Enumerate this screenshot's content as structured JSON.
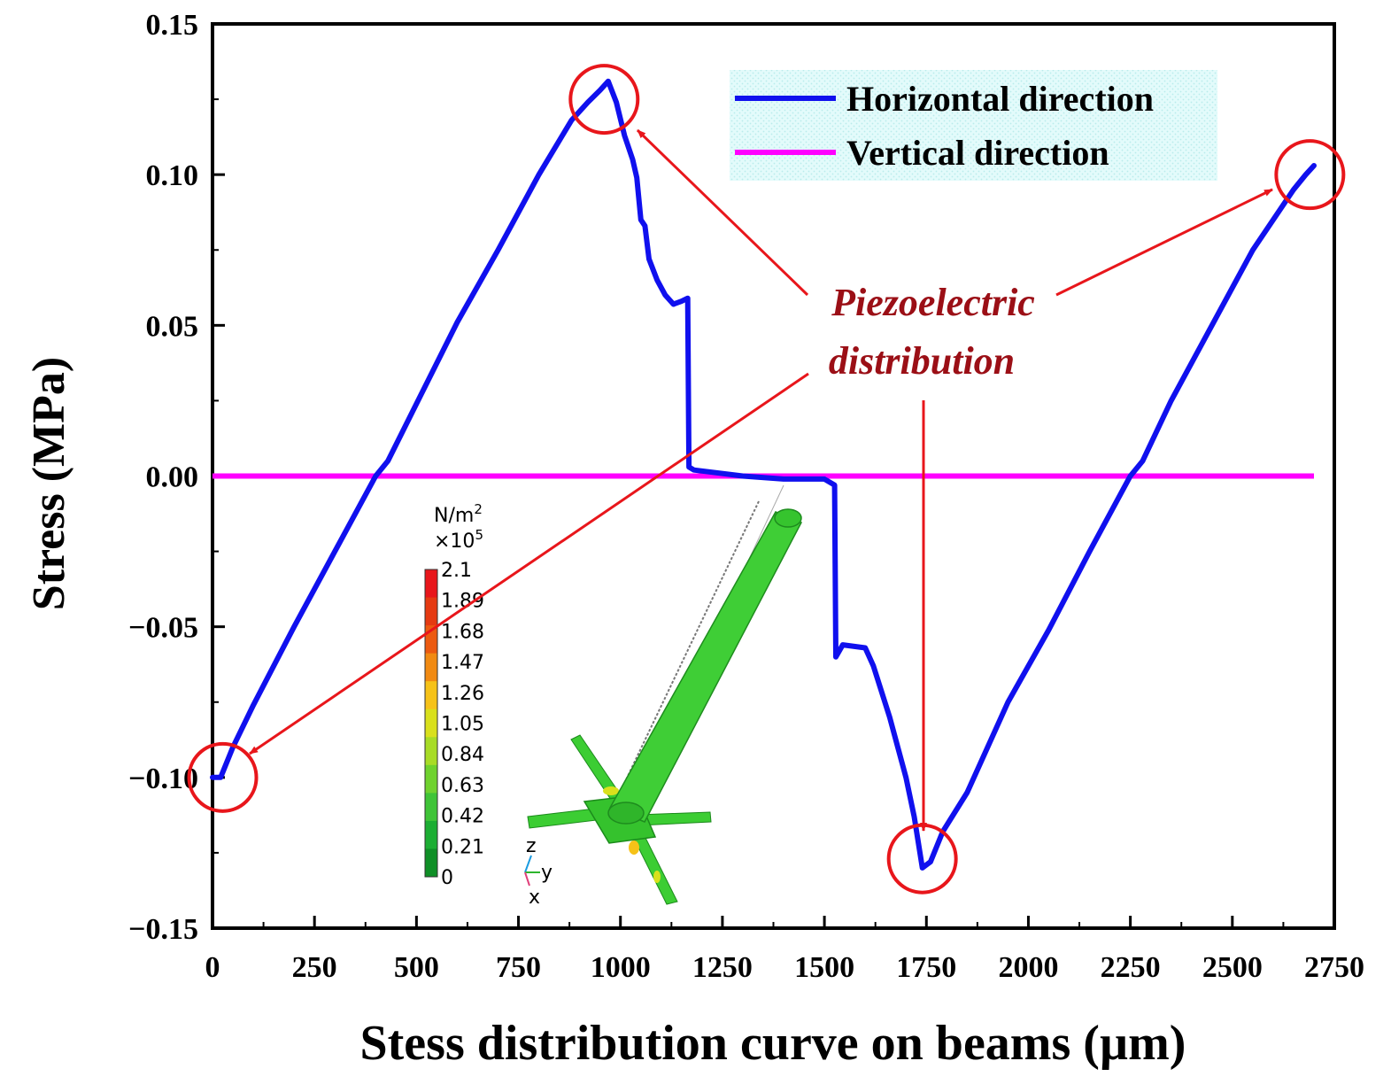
{
  "chart_data": {
    "type": "line",
    "title": "",
    "xlabel": "Stess distribution curve on beams (µm)",
    "ylabel": "Stress (MPa)",
    "xlim": [
      0,
      2750
    ],
    "ylim": [
      -0.15,
      0.15
    ],
    "x_ticks": [
      0,
      250,
      500,
      750,
      1000,
      1250,
      1500,
      1750,
      2000,
      2250,
      2500,
      2750
    ],
    "x_tick_labels": [
      "0",
      "250",
      "500",
      "750",
      "1000",
      "1250",
      "1500",
      "1750",
      "2000",
      "2250",
      "2500",
      "2750"
    ],
    "y_ticks": [
      -0.15,
      -0.1,
      -0.05,
      0.0,
      0.05,
      0.1,
      0.15
    ],
    "y_tick_labels": [
      "−0.15",
      "−0.10",
      "−0.05",
      "0.00",
      "0.05",
      "0.10",
      "0.15"
    ],
    "grid": false,
    "legend_position": "top-right",
    "series": [
      {
        "name": "Horizontal direction",
        "color": "#1010ee",
        "x": [
          0,
          20,
          50,
          100,
          200,
          300,
          400,
          430,
          500,
          600,
          700,
          800,
          880,
          920,
          950,
          970,
          990,
          1010,
          1030,
          1040,
          1050,
          1060,
          1070,
          1090,
          1110,
          1130,
          1150,
          1165,
          1168,
          1180,
          1300,
          1400,
          1500,
          1525,
          1528,
          1545,
          1600,
          1620,
          1660,
          1680,
          1700,
          1720,
          1740,
          1760,
          1790,
          1850,
          1950,
          2050,
          2150,
          2250,
          2280,
          2350,
          2450,
          2550,
          2650,
          2680,
          2700
        ],
        "y": [
          -0.1,
          -0.1,
          -0.09,
          -0.076,
          -0.05,
          -0.025,
          0.0,
          0.005,
          0.024,
          0.051,
          0.075,
          0.1,
          0.118,
          0.124,
          0.128,
          0.131,
          0.124,
          0.113,
          0.105,
          0.099,
          0.085,
          0.083,
          0.072,
          0.065,
          0.06,
          0.057,
          0.058,
          0.059,
          0.003,
          0.002,
          0.0,
          -0.001,
          -0.001,
          -0.003,
          -0.06,
          -0.056,
          -0.057,
          -0.063,
          -0.08,
          -0.09,
          -0.1,
          -0.113,
          -0.13,
          -0.128,
          -0.118,
          -0.105,
          -0.075,
          -0.051,
          -0.025,
          0.0,
          0.005,
          0.025,
          0.05,
          0.075,
          0.095,
          0.1,
          0.103
        ]
      },
      {
        "name": "Vertical direction",
        "color": "#ff00ff",
        "x": [
          0,
          2700
        ],
        "y": [
          0,
          0
        ]
      }
    ],
    "annotations": [
      {
        "text_lines": [
          "Piezoelectric",
          "distribution"
        ],
        "color": "#9b0f16"
      }
    ],
    "highlight_points": [
      {
        "x": 25,
        "y": -0.1
      },
      {
        "x": 960,
        "y": 0.125
      },
      {
        "x": 1740,
        "y": -0.127
      },
      {
        "x": 2690,
        "y": 0.1
      }
    ],
    "inset_colorbar": {
      "unit_label": "N/m",
      "unit_sup": "2",
      "scale_label": "×10",
      "scale_sup": "5",
      "levels": [
        "2.1",
        "1.89",
        "1.68",
        "1.47",
        "1.26",
        "1.05",
        "0.84",
        "0.63",
        "0.42",
        "0.21",
        "0"
      ],
      "colors": [
        "#e8161b",
        "#e53a12",
        "#ec5a10",
        "#f18a12",
        "#f6c218",
        "#d9e01c",
        "#a8dc26",
        "#6fd22e",
        "#3fc437",
        "#1cae33",
        "#0f8f26"
      ],
      "axes_labels": {
        "z": "z",
        "y": "y",
        "x": "x"
      }
    }
  }
}
